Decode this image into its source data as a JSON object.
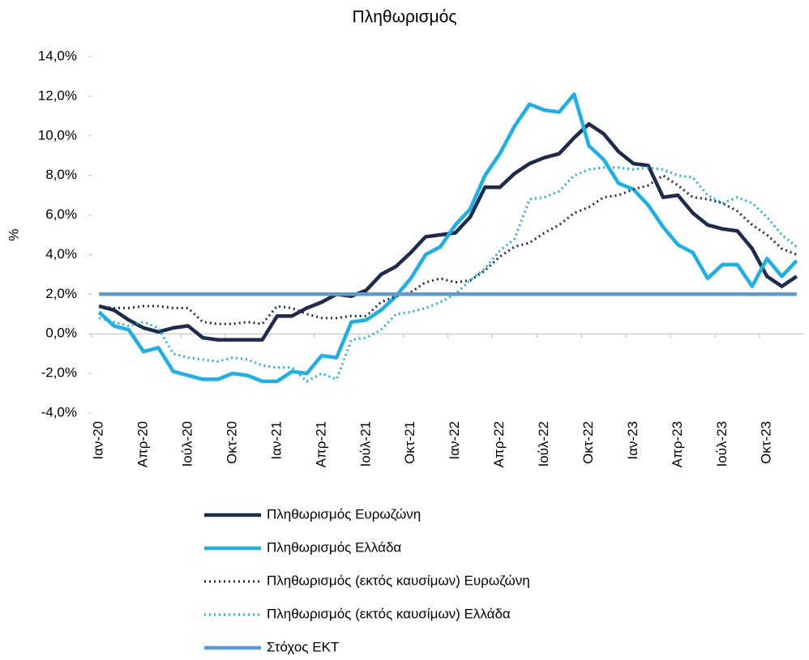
{
  "chart_data": {
    "type": "line",
    "title": "Πληθωρισμός",
    "y_label": "%",
    "categories": [
      "Ιαν-20",
      null,
      null,
      "Απρ-20",
      null,
      null,
      "Ιούλ-20",
      null,
      null,
      "Οκτ-20",
      null,
      null,
      "Ιαν-21",
      null,
      null,
      "Απρ-21",
      null,
      null,
      "Ιούλ-21",
      null,
      null,
      "Οκτ-21",
      null,
      null,
      "Ιαν-22",
      null,
      null,
      "Απρ-22",
      null,
      null,
      "Ιούλ-22",
      null,
      null,
      "Οκτ-22",
      null,
      null,
      "Ιαν-23",
      null,
      null,
      "Απρ-23",
      null,
      null,
      "Ιούλ-23",
      null,
      null,
      "Οκτ-23",
      null,
      null
    ],
    "series": [
      {
        "name": "Πληθωρισμός Ευρωζώνη",
        "color": "#1f2b4d",
        "style": "solid",
        "values": [
          1.4,
          1.2,
          0.7,
          0.3,
          0.1,
          0.3,
          0.4,
          -0.2,
          -0.3,
          -0.3,
          -0.3,
          -0.3,
          0.9,
          0.9,
          1.3,
          1.6,
          2.0,
          1.9,
          2.2,
          3.0,
          3.4,
          4.1,
          4.9,
          5.0,
          5.1,
          5.9,
          7.4,
          7.4,
          8.1,
          8.6,
          8.9,
          9.1,
          9.9,
          10.6,
          10.1,
          9.2,
          8.6,
          8.5,
          6.9,
          7.0,
          6.1,
          5.5,
          5.3,
          5.2,
          4.3,
          2.9,
          2.4,
          2.9
        ]
      },
      {
        "name": "Πληθωρισμός Ελλάδα",
        "color": "#1ab0e8",
        "style": "solid",
        "values": [
          1.1,
          0.4,
          0.2,
          -0.9,
          -0.7,
          -1.9,
          -2.1,
          -2.3,
          -2.3,
          -2.0,
          -2.1,
          -2.4,
          -2.4,
          -1.9,
          -2.0,
          -1.1,
          -1.2,
          0.6,
          0.7,
          1.2,
          1.9,
          2.8,
          4.0,
          4.4,
          5.5,
          6.3,
          8.0,
          9.1,
          10.5,
          11.6,
          11.3,
          11.2,
          12.1,
          9.5,
          8.8,
          7.6,
          7.3,
          6.5,
          5.4,
          4.5,
          4.1,
          2.8,
          3.5,
          3.5,
          2.4,
          3.8,
          2.9,
          3.7
        ]
      },
      {
        "name": "Πληθωρισμός (εκτός καυσίμων) Ευρωζώνη",
        "color": "#1f2b4d",
        "style": "dotted",
        "values": [
          1.4,
          1.3,
          1.3,
          1.4,
          1.4,
          1.3,
          1.3,
          0.6,
          0.5,
          0.5,
          0.6,
          0.5,
          1.4,
          1.3,
          1.0,
          0.8,
          0.8,
          0.9,
          0.9,
          1.6,
          1.9,
          2.1,
          2.6,
          2.8,
          2.6,
          2.7,
          3.2,
          3.9,
          4.4,
          4.6,
          5.1,
          5.5,
          6.1,
          6.4,
          6.9,
          7.0,
          7.3,
          7.5,
          8.0,
          7.5,
          6.9,
          6.8,
          6.6,
          6.2,
          5.5,
          5.0,
          4.3,
          4.0
        ]
      },
      {
        "name": "Πληθωρισμός (εκτός καυσίμων) Ελλάδα",
        "color": "#1ab0e8",
        "style": "dotted",
        "values": [
          0.8,
          0.6,
          0.4,
          0.6,
          0.3,
          -1.0,
          -1.2,
          -1.3,
          -1.4,
          -1.2,
          -1.3,
          -1.6,
          -1.7,
          -1.7,
          -2.4,
          -2.0,
          -2.3,
          -0.3,
          -0.2,
          0.2,
          1.0,
          1.1,
          1.3,
          1.6,
          2.0,
          2.7,
          3.3,
          4.2,
          4.8,
          6.8,
          6.9,
          7.2,
          8.0,
          8.3,
          8.4,
          8.4,
          8.3,
          8.4,
          8.3,
          8.0,
          7.9,
          7.0,
          6.6,
          6.9,
          6.6,
          5.9,
          5.0,
          4.4
        ]
      },
      {
        "name": "Στόχος ΕΚΤ",
        "color": "#5b9bd5",
        "style": "solid",
        "values": [
          2,
          2,
          2,
          2,
          2,
          2,
          2,
          2,
          2,
          2,
          2,
          2,
          2,
          2,
          2,
          2,
          2,
          2,
          2,
          2,
          2,
          2,
          2,
          2,
          2,
          2,
          2,
          2,
          2,
          2,
          2,
          2,
          2,
          2,
          2,
          2,
          2,
          2,
          2,
          2,
          2,
          2,
          2,
          2,
          2,
          2,
          2,
          2
        ]
      }
    ],
    "ylim": [
      -4,
      14
    ],
    "yticks": [
      {
        "value": -4,
        "label": "-4,0%"
      },
      {
        "value": -2,
        "label": "-2,0%"
      },
      {
        "value": 0,
        "label": "0,0%"
      },
      {
        "value": 2,
        "label": "2,0%"
      },
      {
        "value": 4,
        "label": "4,0%"
      },
      {
        "value": 6,
        "label": "6,0%"
      },
      {
        "value": 8,
        "label": "8,0%"
      },
      {
        "value": 10,
        "label": "10,0%"
      },
      {
        "value": 12,
        "label": "12,0%"
      },
      {
        "value": 14,
        "label": "14,0%"
      }
    ],
    "grid": false,
    "legend": "bottom"
  }
}
